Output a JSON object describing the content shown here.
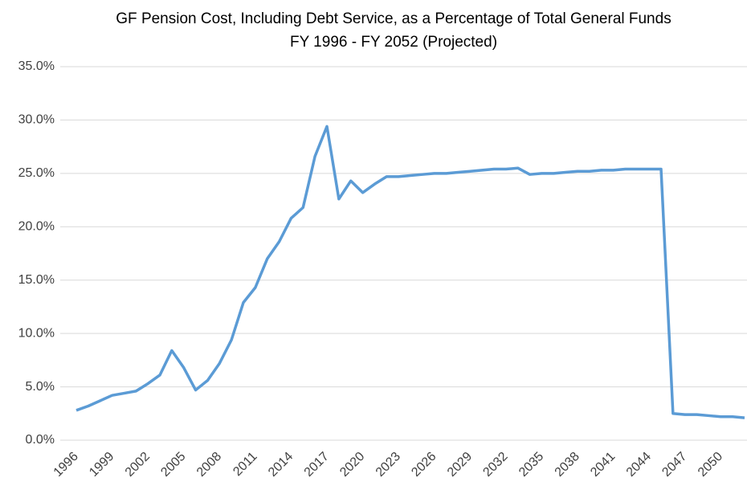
{
  "chart_data": {
    "type": "line",
    "title": "GF Pension Cost, Including Debt Service, as a Percentage of Total General Funds",
    "subtitle": "FY 1996 - FY 2052 (Projected)",
    "x": [
      1996,
      1997,
      1998,
      1999,
      2000,
      2001,
      2002,
      2003,
      2004,
      2005,
      2006,
      2007,
      2008,
      2009,
      2010,
      2011,
      2012,
      2013,
      2014,
      2015,
      2016,
      2017,
      2018,
      2019,
      2020,
      2021,
      2022,
      2023,
      2024,
      2025,
      2026,
      2027,
      2028,
      2029,
      2030,
      2031,
      2032,
      2033,
      2034,
      2035,
      2036,
      2037,
      2038,
      2039,
      2040,
      2041,
      2042,
      2043,
      2044,
      2045,
      2046,
      2047,
      2048,
      2049,
      2050,
      2051,
      2052
    ],
    "series": [
      {
        "color": "#5b9bd5",
        "values": [
          2.8,
          3.2,
          3.7,
          4.2,
          4.4,
          4.6,
          5.3,
          6.1,
          8.4,
          6.8,
          4.7,
          5.6,
          7.2,
          9.4,
          12.9,
          14.3,
          17.0,
          18.6,
          20.8,
          21.8,
          26.6,
          29.4,
          22.6,
          24.3,
          23.2,
          24.0,
          24.7,
          24.7,
          24.8,
          24.9,
          25.0,
          25.0,
          25.1,
          25.2,
          25.3,
          25.4,
          25.4,
          25.5,
          24.9,
          25.0,
          25.0,
          25.1,
          25.2,
          25.2,
          25.3,
          25.3,
          25.4,
          25.4,
          25.4,
          25.4,
          2.5,
          2.4,
          2.4,
          2.3,
          2.2,
          2.2,
          2.1
        ]
      }
    ],
    "xlim": [
      1996,
      2052
    ],
    "xticks": [
      1996,
      1999,
      2002,
      2005,
      2008,
      2011,
      2014,
      2017,
      2020,
      2023,
      2026,
      2029,
      2032,
      2035,
      2038,
      2041,
      2044,
      2047,
      2050
    ],
    "ylim": [
      0,
      35
    ],
    "yticks": [
      {
        "value": 0,
        "label": "0.0%"
      },
      {
        "value": 5,
        "label": "5.0%"
      },
      {
        "value": 10,
        "label": "10.0%"
      },
      {
        "value": 15,
        "label": "15.0%"
      },
      {
        "value": 20,
        "label": "20.0%"
      },
      {
        "value": 25,
        "label": "25.0%"
      },
      {
        "value": 30,
        "label": "30.0%"
      },
      {
        "value": 35,
        "label": "35.0%"
      }
    ],
    "grid": true
  }
}
